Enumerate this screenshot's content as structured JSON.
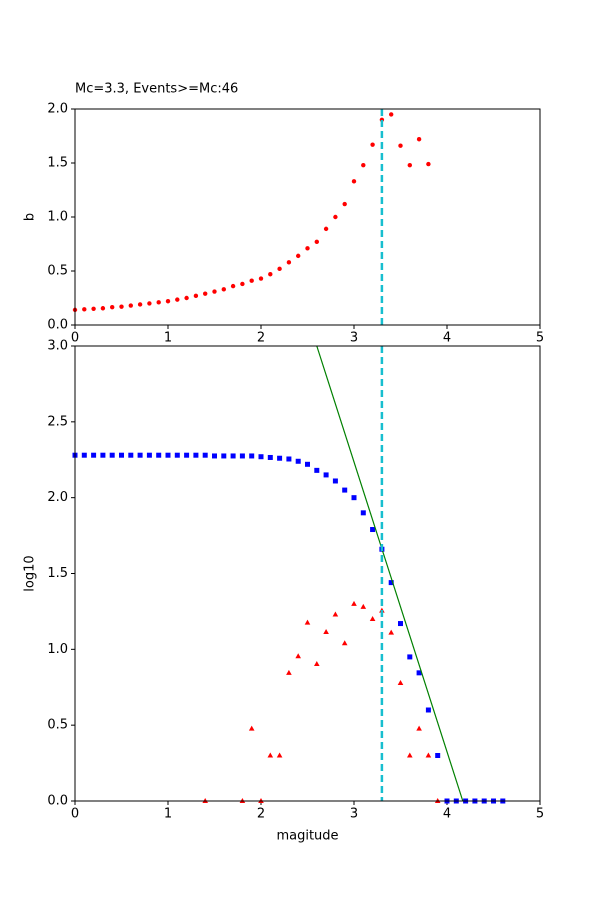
{
  "chart_data": [
    {
      "type": "scatter",
      "title": "Mc=3.3, Events>=Mc:46",
      "y_label": "b",
      "xlim": [
        0,
        5
      ],
      "xticks": [
        0,
        1,
        2,
        3,
        4,
        5
      ],
      "ylim": [
        0,
        2
      ],
      "yticks": [
        {
          "value": 0,
          "label": "0.0"
        },
        {
          "value": 0.5,
          "label": "0.5"
        },
        {
          "value": 1,
          "label": "1.0"
        },
        {
          "value": 1.5,
          "label": "1.5"
        },
        {
          "value": 2,
          "label": "2.0"
        }
      ],
      "series": [
        {
          "color": "#ff0000",
          "marker": "o",
          "x": [
            0,
            0.1,
            0.2,
            0.3,
            0.4,
            0.5,
            0.6,
            0.7,
            0.8,
            0.9,
            1.0,
            1.1,
            1.2,
            1.3,
            1.4,
            1.5,
            1.6,
            1.7,
            1.8,
            1.9,
            2.0,
            2.1,
            2.2,
            2.3,
            2.4,
            2.5,
            2.6,
            2.7,
            2.8,
            2.9,
            3.0,
            3.1,
            3.2,
            3.3,
            3.4,
            3.5,
            3.6,
            3.7,
            3.8
          ],
          "values": [
            0.14,
            0.145,
            0.15,
            0.155,
            0.165,
            0.17,
            0.18,
            0.19,
            0.2,
            0.21,
            0.22,
            0.235,
            0.25,
            0.27,
            0.29,
            0.31,
            0.33,
            0.36,
            0.38,
            0.41,
            0.43,
            0.47,
            0.52,
            0.58,
            0.64,
            0.71,
            0.77,
            0.89,
            1.0,
            1.12,
            1.33,
            1.48,
            1.67,
            1.9,
            1.95,
            1.66,
            1.48,
            1.72,
            1.49
          ]
        }
      ],
      "vlines": [
        {
          "x": 3.3,
          "color": "#17becf"
        }
      ]
    },
    {
      "type": "scatter",
      "y_label": "log10",
      "x_label": "magitude",
      "xlim": [
        0,
        5
      ],
      "xticks": [
        0,
        1,
        2,
        3,
        4,
        5
      ],
      "ylim": [
        0,
        3
      ],
      "yticks": [
        {
          "value": 0,
          "label": "0.0"
        },
        {
          "value": 0.5,
          "label": "0.5"
        },
        {
          "value": 1,
          "label": "1.0"
        },
        {
          "value": 1.5,
          "label": "1.5"
        },
        {
          "value": 2,
          "label": "2.0"
        },
        {
          "value": 2.5,
          "label": "2.5"
        },
        {
          "value": 3,
          "label": "3.0"
        }
      ],
      "series": [
        {
          "color": "#0000ff",
          "marker": "s",
          "x": [
            0,
            0.1,
            0.2,
            0.3,
            0.4,
            0.5,
            0.6,
            0.7,
            0.8,
            0.9,
            1.0,
            1.1,
            1.2,
            1.3,
            1.4,
            1.5,
            1.6,
            1.7,
            1.8,
            1.9,
            2.0,
            2.1,
            2.2,
            2.3,
            2.4,
            2.5,
            2.6,
            2.7,
            2.8,
            2.9,
            3.0,
            3.1,
            3.2,
            3.3,
            3.4,
            3.5,
            3.6,
            3.7,
            3.8,
            3.9,
            4.0,
            4.1,
            4.2,
            4.3,
            4.4,
            4.5,
            4.6
          ],
          "values": [
            2.28,
            2.28,
            2.28,
            2.28,
            2.28,
            2.28,
            2.28,
            2.28,
            2.28,
            2.28,
            2.28,
            2.28,
            2.28,
            2.28,
            2.28,
            2.275,
            2.275,
            2.275,
            2.275,
            2.275,
            2.27,
            2.265,
            2.26,
            2.255,
            2.24,
            2.22,
            2.18,
            2.15,
            2.11,
            2.05,
            2.0,
            1.9,
            1.79,
            1.66,
            1.44,
            1.17,
            0.95,
            0.845,
            0.6,
            0.3,
            0,
            0,
            0,
            0,
            0,
            0,
            0
          ]
        },
        {
          "color": "#ff0000",
          "marker": "^",
          "x": [
            1.4,
            1.8,
            1.9,
            2.0,
            2.1,
            2.2,
            2.3,
            2.4,
            2.5,
            2.6,
            2.7,
            2.8,
            2.9,
            3.0,
            3.1,
            3.2,
            3.3,
            3.4,
            3.5,
            3.6,
            3.7,
            3.8,
            3.9
          ],
          "values": [
            0,
            0,
            0.477,
            0,
            0.3,
            0.3,
            0.845,
            0.954,
            1.176,
            0.903,
            1.114,
            1.23,
            1.04,
            1.3,
            1.28,
            1.2,
            1.255,
            1.11,
            0.778,
            0.3,
            0.477,
            0.3,
            0
          ]
        },
        {
          "color": "#008000",
          "marker": "line",
          "x": [
            2.6,
            4.17
          ],
          "values": [
            3,
            0
          ]
        }
      ],
      "vlines": [
        {
          "x": 3.3,
          "color": "#17becf"
        }
      ]
    }
  ]
}
